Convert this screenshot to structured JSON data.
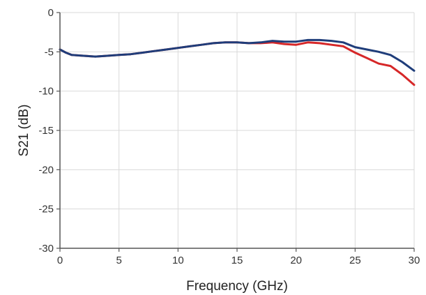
{
  "chart_data": {
    "type": "line",
    "title": "",
    "xlabel": "Frequency (GHz)",
    "ylabel": "S21 (dB)",
    "xlim": [
      0,
      30
    ],
    "ylim": [
      -30,
      0
    ],
    "xticks": [
      "0",
      "5",
      "10",
      "15",
      "20",
      "25",
      "30"
    ],
    "yticks": [
      "0",
      "-5",
      "-10",
      "-15",
      "-20",
      "-25",
      "-30"
    ],
    "grid": true,
    "legend": "none",
    "series": [
      {
        "color": "#d62728",
        "x": [
          0,
          0.5,
          1,
          2,
          3,
          4,
          5,
          6,
          7,
          8,
          9,
          10,
          11,
          12,
          13,
          14,
          15,
          16,
          17,
          18,
          19,
          20,
          21,
          22,
          23,
          24,
          25,
          26,
          27,
          28,
          29,
          30
        ],
        "y": [
          -4.7,
          -5.1,
          -5.4,
          -5.5,
          -5.6,
          -5.5,
          -5.4,
          -5.3,
          -5.1,
          -4.9,
          -4.7,
          -4.5,
          -4.3,
          -4.1,
          -3.9,
          -3.8,
          -3.8,
          -3.9,
          -3.9,
          -3.8,
          -4.0,
          -4.1,
          -3.8,
          -3.9,
          -4.1,
          -4.3,
          -5.1,
          -5.8,
          -6.5,
          -6.8,
          -7.9,
          -9.2
        ]
      },
      {
        "color": "#1f3d7a",
        "x": [
          0,
          0.5,
          1,
          2,
          3,
          4,
          5,
          6,
          7,
          8,
          9,
          10,
          11,
          12,
          13,
          14,
          15,
          16,
          17,
          18,
          19,
          20,
          21,
          22,
          23,
          24,
          25,
          26,
          27,
          28,
          29,
          30
        ],
        "y": [
          -4.7,
          -5.1,
          -5.4,
          -5.5,
          -5.6,
          -5.5,
          -5.4,
          -5.3,
          -5.1,
          -4.9,
          -4.7,
          -4.5,
          -4.3,
          -4.1,
          -3.9,
          -3.8,
          -3.8,
          -3.9,
          -3.8,
          -3.6,
          -3.7,
          -3.7,
          -3.5,
          -3.5,
          -3.6,
          -3.8,
          -4.4,
          -4.7,
          -5.0,
          -5.4,
          -6.3,
          -7.4
        ]
      }
    ]
  }
}
